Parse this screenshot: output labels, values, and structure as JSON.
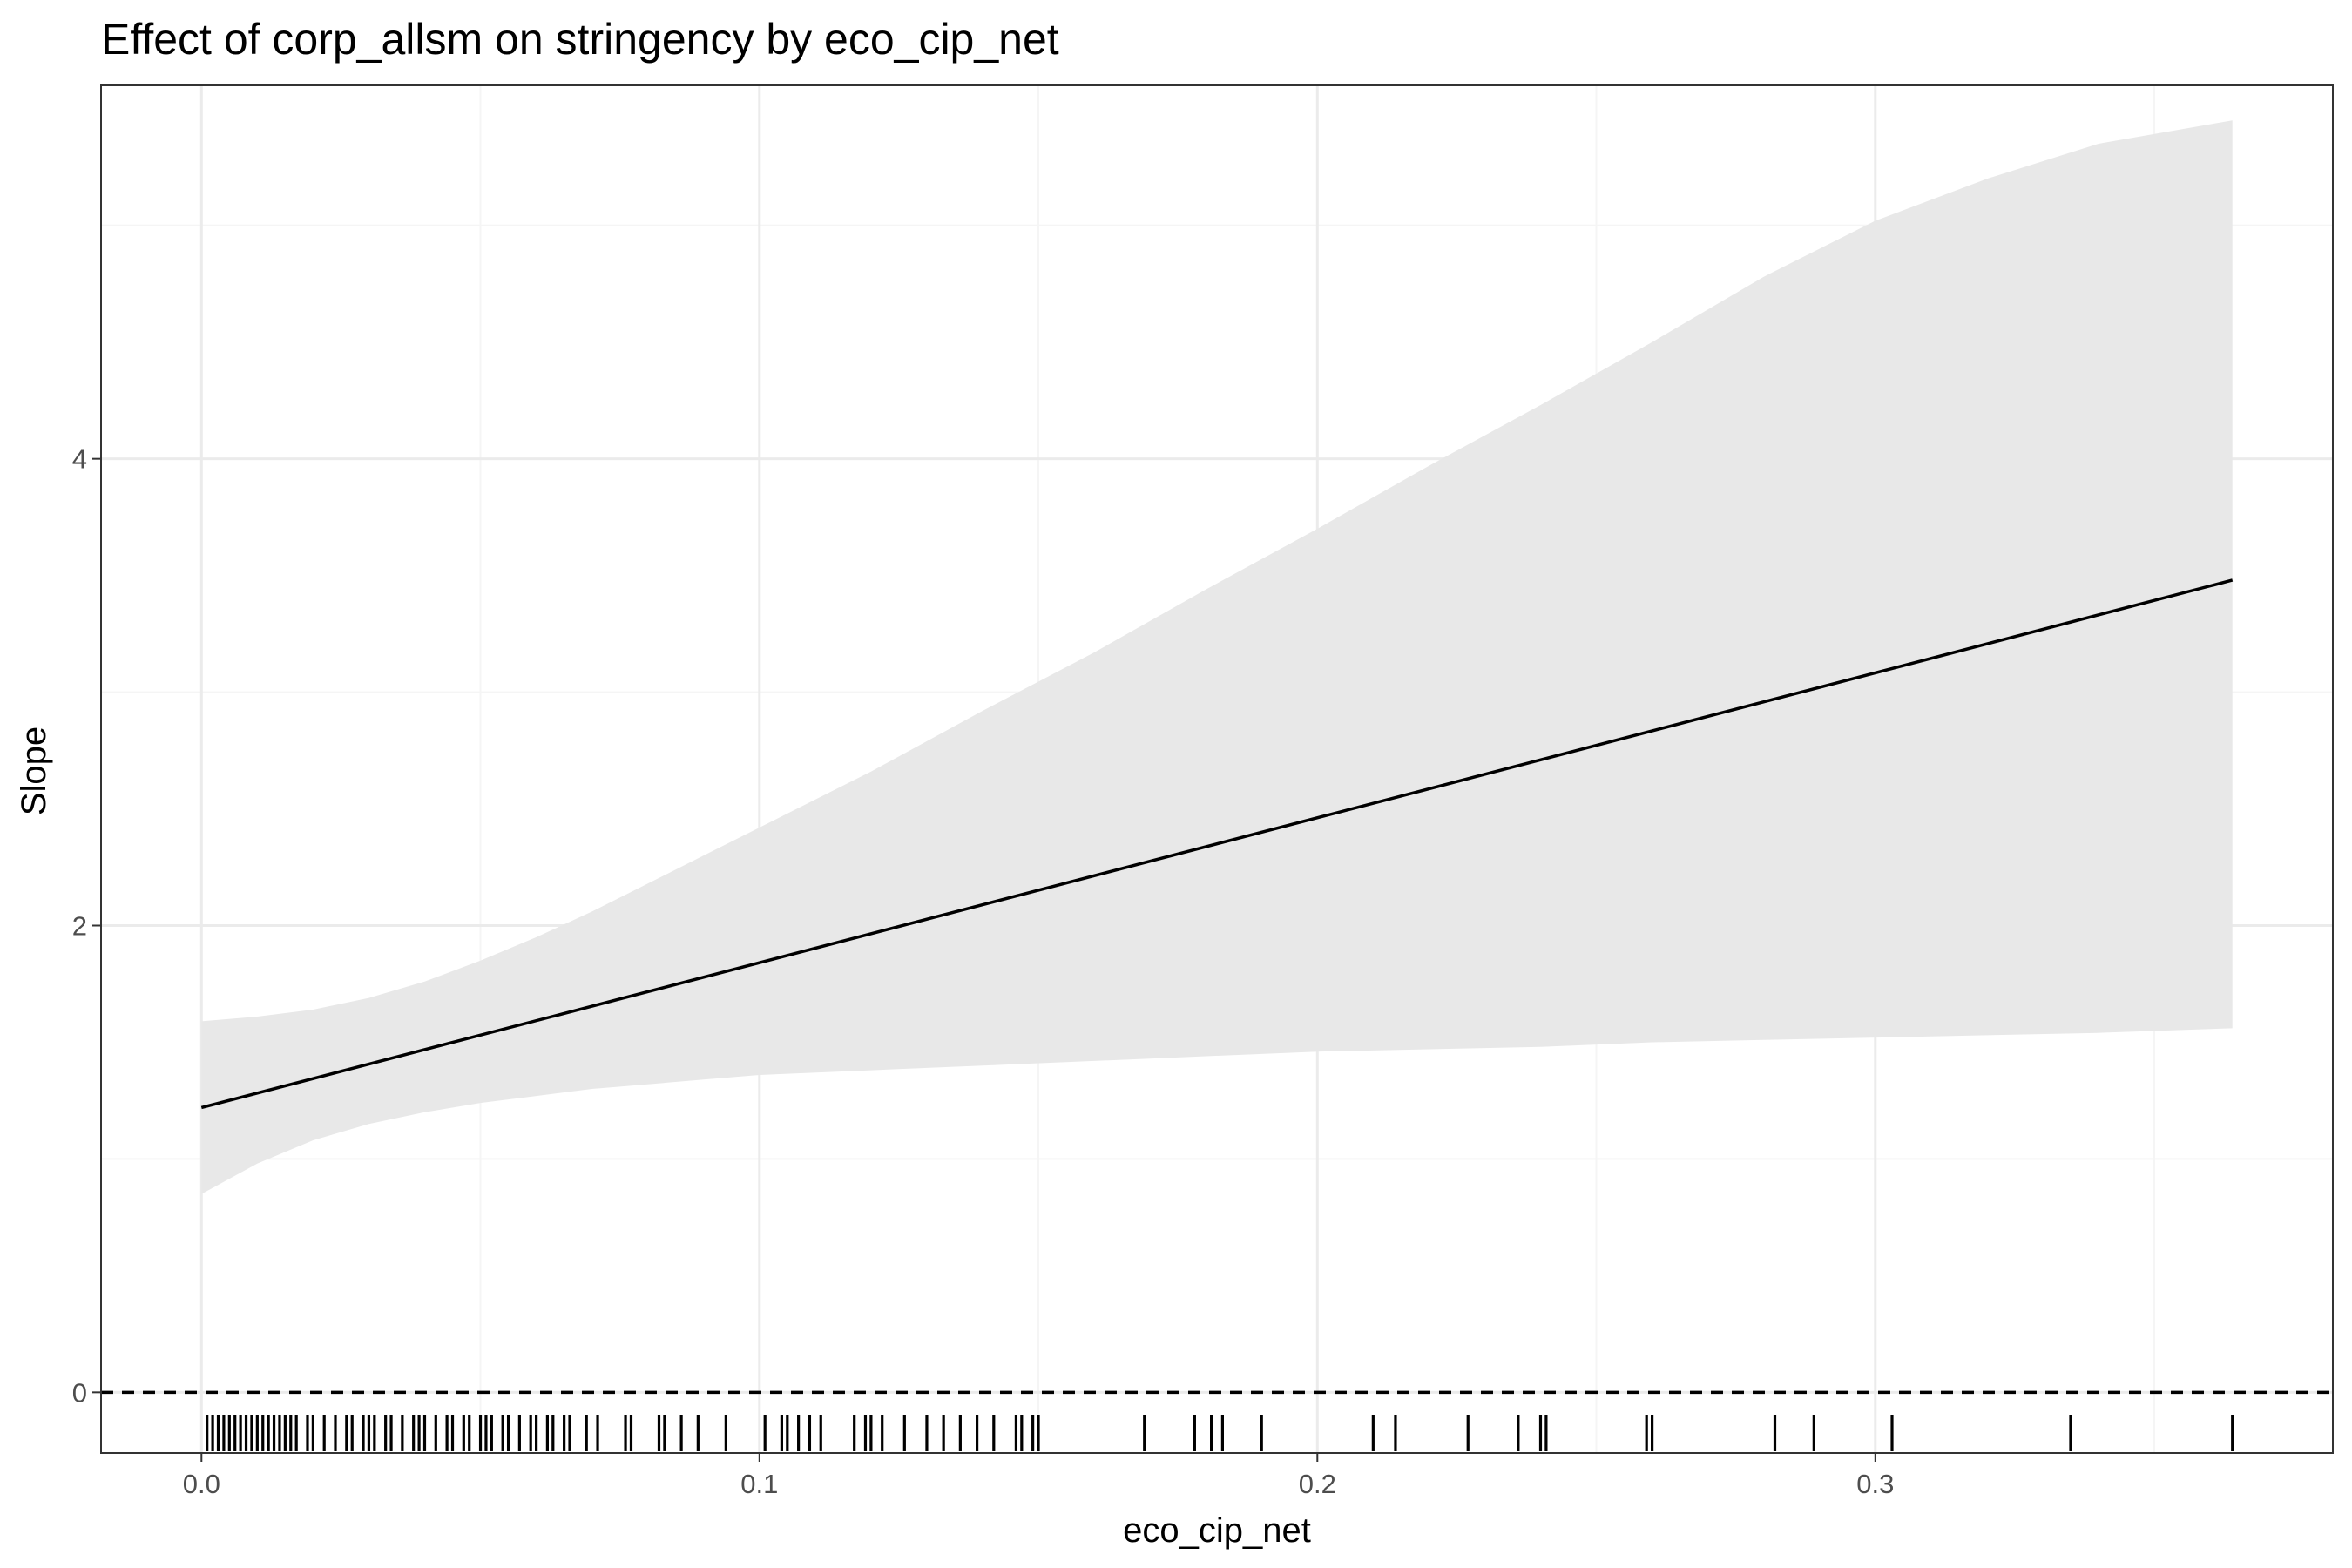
{
  "chart_data": {
    "type": "line",
    "title": "Effect of corp_allsm on stringency by eco_cip_net",
    "xlabel": "eco_cip_net",
    "ylabel": "Slope",
    "xlim": [
      -0.018,
      0.382
    ],
    "ylim": [
      -0.26,
      5.6
    ],
    "x_ticks": [
      0.0,
      0.1,
      0.2,
      0.3
    ],
    "x_tick_labels": [
      "0.0",
      "0.1",
      "0.2",
      "0.3"
    ],
    "y_ticks": [
      0,
      2,
      4
    ],
    "y_tick_labels": [
      "0",
      "2",
      "4"
    ],
    "x_minor_ticks": [
      0.05,
      0.15,
      0.25,
      0.35
    ],
    "y_minor_ticks": [
      1,
      3,
      5
    ],
    "grid": true,
    "reference_line": {
      "y": 0,
      "style": "dashed"
    },
    "series": [
      {
        "x": [
          0.0,
          0.364
        ],
        "y": [
          1.22,
          3.48
        ]
      }
    ],
    "confidence_band": {
      "x": [
        0.0,
        0.01,
        0.02,
        0.03,
        0.04,
        0.05,
        0.06,
        0.07,
        0.08,
        0.09,
        0.1,
        0.12,
        0.14,
        0.16,
        0.18,
        0.2,
        0.22,
        0.24,
        0.26,
        0.28,
        0.3,
        0.32,
        0.34,
        0.364
      ],
      "lower": [
        0.85,
        0.98,
        1.08,
        1.15,
        1.2,
        1.24,
        1.27,
        1.3,
        1.32,
        1.34,
        1.36,
        1.38,
        1.4,
        1.42,
        1.44,
        1.46,
        1.47,
        1.48,
        1.5,
        1.51,
        1.52,
        1.53,
        1.54,
        1.56
      ],
      "upper": [
        1.59,
        1.61,
        1.64,
        1.69,
        1.76,
        1.85,
        1.95,
        2.06,
        2.18,
        2.3,
        2.42,
        2.66,
        2.92,
        3.17,
        3.44,
        3.7,
        3.97,
        4.23,
        4.5,
        4.78,
        5.02,
        5.2,
        5.35,
        5.45
      ]
    },
    "rug_x": [
      0.001,
      0.002,
      0.003,
      0.004,
      0.005,
      0.006,
      0.007,
      0.008,
      0.009,
      0.01,
      0.011,
      0.012,
      0.013,
      0.014,
      0.015,
      0.016,
      0.017,
      0.019,
      0.02,
      0.022,
      0.024,
      0.026,
      0.027,
      0.029,
      0.03,
      0.031,
      0.033,
      0.034,
      0.036,
      0.038,
      0.039,
      0.04,
      0.042,
      0.044,
      0.045,
      0.047,
      0.048,
      0.05,
      0.051,
      0.052,
      0.054,
      0.055,
      0.057,
      0.059,
      0.06,
      0.062,
      0.063,
      0.065,
      0.066,
      0.069,
      0.071,
      0.076,
      0.077,
      0.082,
      0.083,
      0.086,
      0.089,
      0.094,
      0.101,
      0.104,
      0.105,
      0.107,
      0.109,
      0.111,
      0.117,
      0.119,
      0.12,
      0.122,
      0.126,
      0.13,
      0.133,
      0.136,
      0.139,
      0.142,
      0.146,
      0.147,
      0.149,
      0.15,
      0.169,
      0.178,
      0.181,
      0.183,
      0.19,
      0.21,
      0.214,
      0.227,
      0.236,
      0.24,
      0.241,
      0.259,
      0.26,
      0.282,
      0.289,
      0.303,
      0.335,
      0.364
    ]
  },
  "colors": {
    "panel_border": "#333333",
    "grid_major": "#ebebeb",
    "grid_minor": "#f5f5f5",
    "band_fill": "#e8e8e8",
    "line": "#000000",
    "rug": "#000000",
    "tick_text": "#4d4d4d"
  }
}
